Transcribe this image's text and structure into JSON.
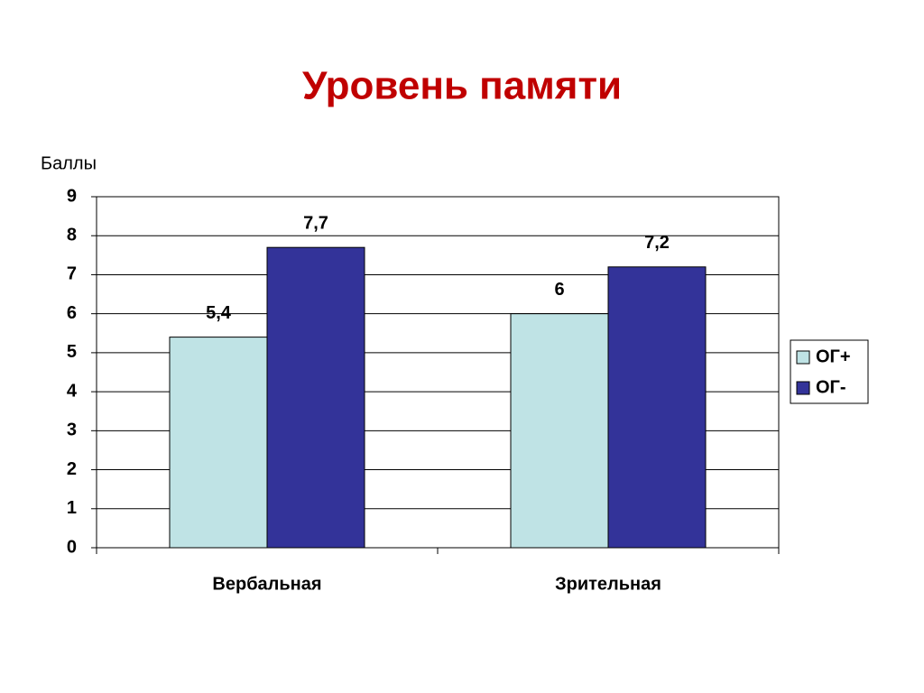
{
  "chart_data": {
    "type": "bar",
    "title": "Уровень памяти",
    "y_label": "Баллы",
    "categories": [
      "Вербальная",
      "Зрительная"
    ],
    "series": [
      {
        "name": "ОГ+",
        "color": "#bfe3e5",
        "values": [
          5.4,
          6
        ],
        "value_labels": [
          "5,4",
          "6"
        ]
      },
      {
        "name": "ОГ-",
        "color": "#333399",
        "values": [
          7.7,
          7.2
        ],
        "value_labels": [
          "7,7",
          "7,2"
        ]
      }
    ],
    "ylim": [
      0,
      9
    ],
    "yticks": [
      0,
      1,
      2,
      3,
      4,
      5,
      6,
      7,
      8,
      9
    ],
    "grid": true,
    "legend": "right"
  }
}
